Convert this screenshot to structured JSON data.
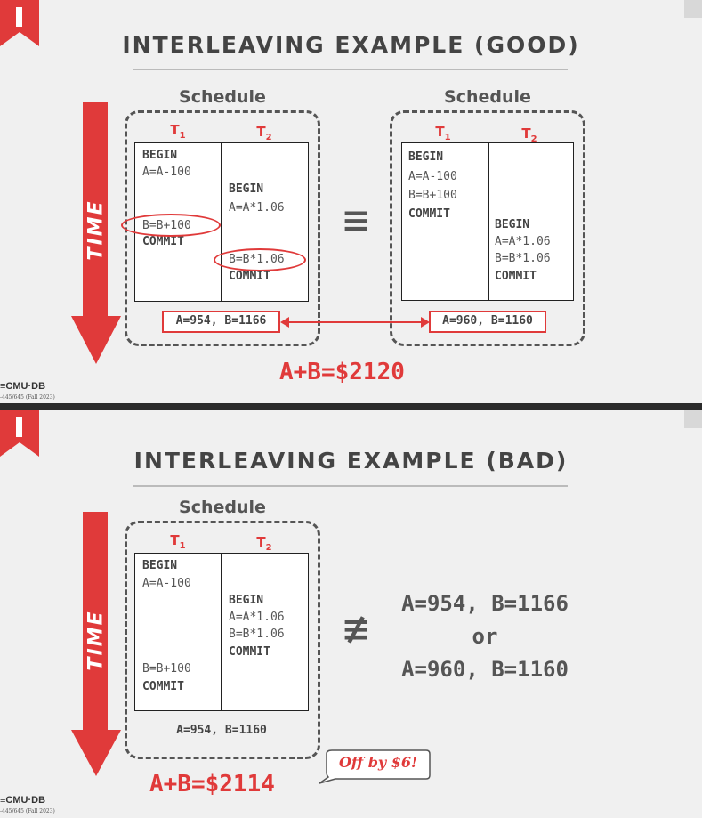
{
  "colors": {
    "accent": "#e03a3a",
    "text": "#444444",
    "background": "#f0f0f0"
  },
  "slide1": {
    "title": "INTERLEAVING EXAMPLE (GOOD)",
    "schedule_label": "Schedule",
    "time_label": "TIME",
    "footer": {
      "logo": "≡CMU·DB",
      "course": "-445/645 (Fall 2023)"
    },
    "left_schedule": {
      "t1_label": "T",
      "t1_sub": "1",
      "t2_label": "T",
      "t2_sub": "2",
      "t1_ops": [
        "BEGIN",
        "A=A-100",
        "B=B+100",
        "COMMIT"
      ],
      "t2_ops": [
        "BEGIN",
        "A=A*1.06",
        "B=B*1.06",
        "COMMIT"
      ],
      "result": "A=954, B=1166"
    },
    "right_schedule": {
      "t1_label": "T",
      "t1_sub": "1",
      "t2_label": "T",
      "t2_sub": "2",
      "t1_ops": [
        "BEGIN",
        "A=A-100",
        "B=B+100",
        "COMMIT"
      ],
      "t2_ops": [
        "BEGIN",
        "A=A*1.06",
        "B=B*1.06",
        "COMMIT"
      ],
      "result": "A=960, B=1160"
    },
    "equiv_symbol": "≡",
    "sum": "A+B=$2120"
  },
  "slide2": {
    "title": "INTERLEAVING EXAMPLE (BAD)",
    "schedule_label": "Schedule",
    "time_label": "TIME",
    "footer": {
      "logo": "≡CMU·DB",
      "course": "-445/645 (Fall 2023)"
    },
    "schedule": {
      "t1_label": "T",
      "t1_sub": "1",
      "t2_label": "T",
      "t2_sub": "2",
      "t1_ops": [
        "BEGIN",
        "A=A-100",
        "B=B+100",
        "COMMIT"
      ],
      "t2_ops": [
        "BEGIN",
        "A=A*1.06",
        "B=B*1.06",
        "COMMIT"
      ],
      "result": "A=954, B=1160"
    },
    "not_equiv_symbol": "≢",
    "outcomes": [
      "A=954, B=1166",
      "or",
      "A=960, B=1160"
    ],
    "sum": "A+B=$2114",
    "callout": "Off by $6!"
  }
}
